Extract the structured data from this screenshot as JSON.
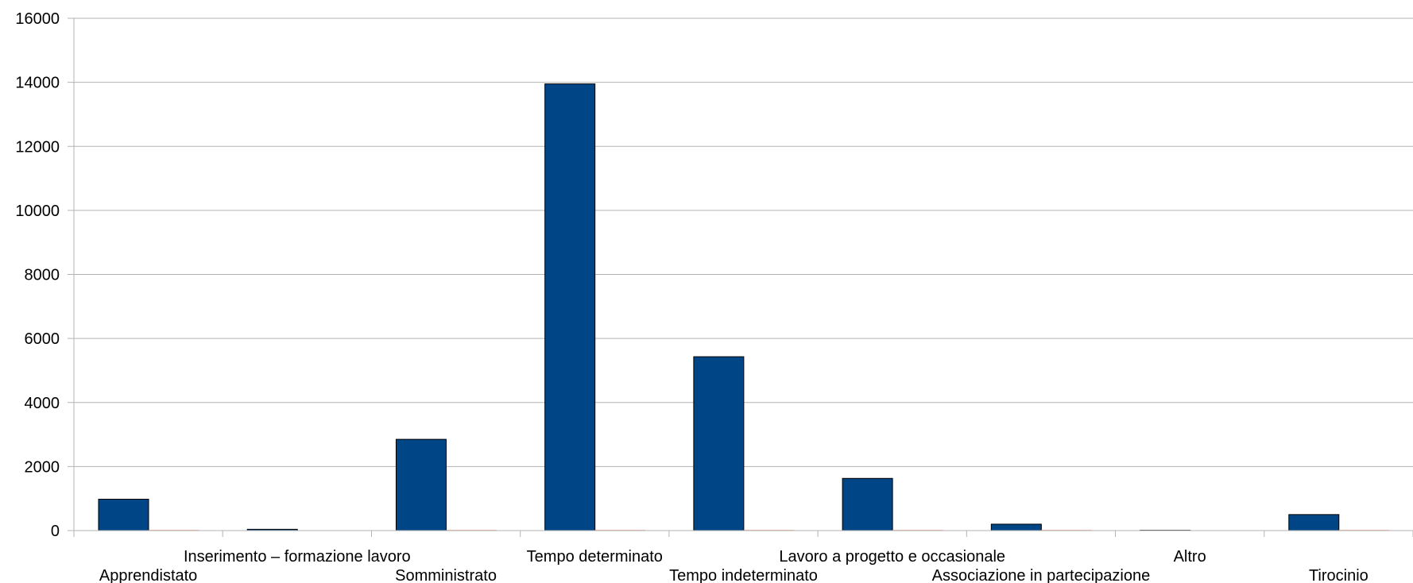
{
  "chart_data": {
    "type": "bar",
    "title": "",
    "xlabel": "",
    "ylabel": "",
    "ylim": [
      0,
      16000
    ],
    "yticks": [
      0,
      2000,
      4000,
      6000,
      8000,
      10000,
      12000,
      14000,
      16000
    ],
    "grid": true,
    "legend": "none",
    "categories": [
      "Apprendistato",
      "Inserimento – formazione lavoro",
      "Somministrato",
      "Tempo determinato",
      "Tempo indeterminato",
      "Lavoro a progetto e occasionale",
      "Associazione in partecipazione",
      "Altro",
      "Tirocinio"
    ],
    "series": [
      {
        "color": "#004586",
        "values": [
          980,
          40,
          2850,
          13950,
          5430,
          1630,
          200,
          10,
          500
        ]
      },
      {
        "color": "#ff420e",
        "values": [
          5,
          0,
          5,
          5,
          5,
          5,
          5,
          0,
          5
        ]
      }
    ]
  }
}
